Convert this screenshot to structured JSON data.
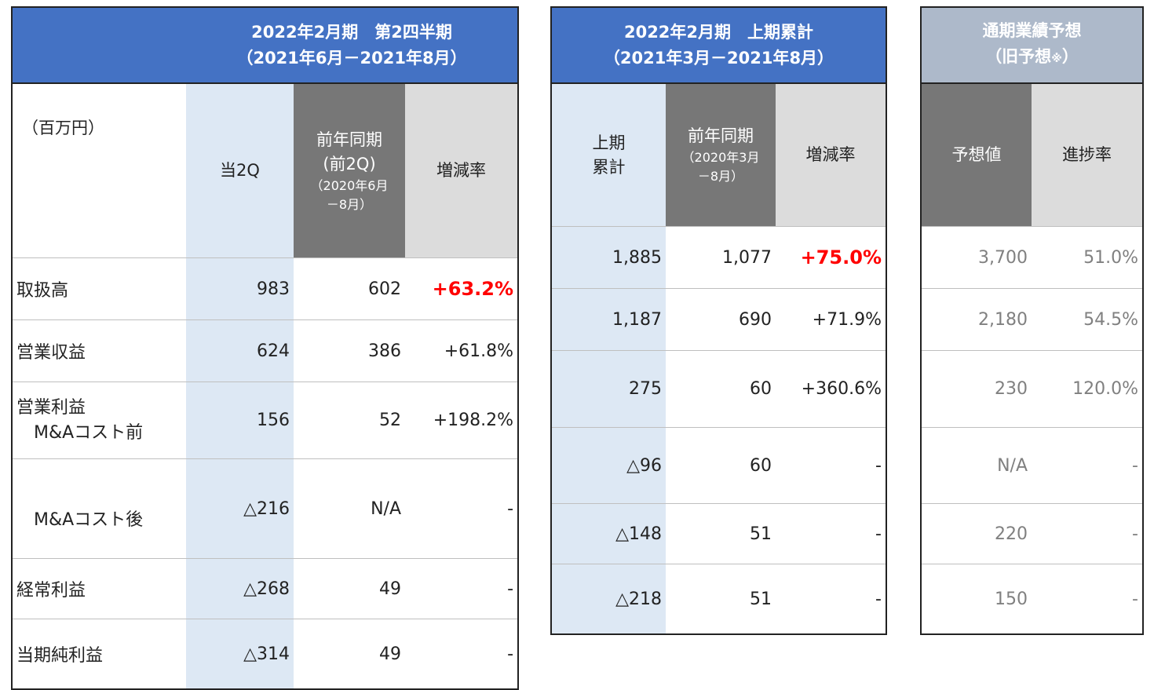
{
  "unit_label": "（百万円）",
  "q2": {
    "title_line1": "2022年2月期　第2四半期",
    "title_line2": "（2021年6月－2021年8月）",
    "col_current": "当2Q",
    "col_prev_line1": "前年同期",
    "col_prev_line2": "(前2Q)",
    "col_prev_small1": "（2020年6月",
    "col_prev_small2": "－8月）",
    "col_change": "増減率"
  },
  "h1": {
    "title_line1": "2022年2月期　上期累計",
    "title_line2": "（2021年3月－2021年8月）",
    "col_current_line1": "上期",
    "col_current_line2": "累計",
    "col_prev_line1": "前年同期",
    "col_prev_small1": "（2020年3月",
    "col_prev_small2": "－8月）",
    "col_change": "増減率"
  },
  "fy": {
    "title_line1": "通期業績予想",
    "title_line2": "（旧予想",
    "title_note": "※",
    "title_close": "）",
    "col_forecast": "予想値",
    "col_progress": "進捗率"
  },
  "rows": [
    {
      "label": "取扱高",
      "q2_cur": "983",
      "q2_prev": "602",
      "q2_chg": "+63.2%",
      "h1_cur": "1,885",
      "h1_prev": "1,077",
      "h1_chg": "+75.0%",
      "fy_val": "3,700",
      "fy_prog": "51.0%"
    },
    {
      "label": "営業収益",
      "q2_cur": "624",
      "q2_prev": "386",
      "q2_chg": "+61.8%",
      "h1_cur": "1,187",
      "h1_prev": "690",
      "h1_chg": "+71.9%",
      "fy_val": "2,180",
      "fy_prog": "54.5%"
    },
    {
      "label_line1": "営業利益",
      "label_line2": "M&Aコスト前",
      "q2_cur": "156",
      "q2_prev": "52",
      "q2_chg": "+198.2%",
      "h1_cur": "275",
      "h1_prev": "60",
      "h1_chg": "+360.6%",
      "fy_val": "230",
      "fy_prog": "120.0%"
    },
    {
      "label": "M&Aコスト後",
      "q2_cur": "△216",
      "q2_prev": "N/A",
      "q2_chg": "-",
      "h1_cur": "△96",
      "h1_prev": "60",
      "h1_chg": "-",
      "fy_val": "N/A",
      "fy_prog": "-"
    },
    {
      "label": "経常利益",
      "q2_cur": "△268",
      "q2_prev": "49",
      "q2_chg": "-",
      "h1_cur": "△148",
      "h1_prev": "51",
      "h1_chg": "-",
      "fy_val": "220",
      "fy_prog": "-"
    },
    {
      "label": "当期純利益",
      "q2_cur": "△314",
      "q2_prev": "49",
      "q2_chg": "-",
      "h1_cur": "△218",
      "h1_prev": "51",
      "h1_chg": "-",
      "fy_val": "150",
      "fy_prog": "-"
    }
  ],
  "colors": {
    "header_blue": "#4472c4",
    "header_grey": "#adb9ca",
    "current_col": "#dde8f4",
    "prev_col_head": "#777777",
    "change_col_head": "#dcdcdc",
    "highlight_red": "#ff0000",
    "forecast_text": "#808080"
  }
}
